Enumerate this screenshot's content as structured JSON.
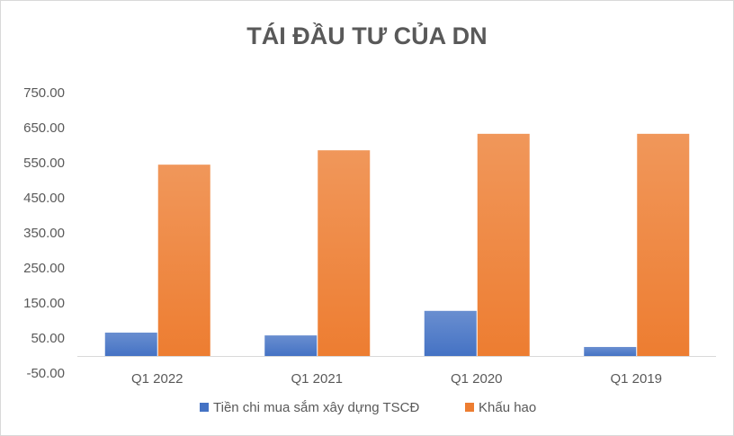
{
  "chart_data": {
    "type": "bar",
    "title": "TÁI ĐẦU TƯ CỦA DN",
    "categories": [
      "Q1 2022",
      "Q1 2021",
      "Q1 2020",
      "Q1 2019"
    ],
    "series": [
      {
        "name": "Tiền chi mua sắm xây dựng TSCĐ",
        "color": "#4472c4",
        "values": [
          68,
          60,
          130,
          27
        ]
      },
      {
        "name": "Khấu hao",
        "color": "#ed7d31",
        "values": [
          547,
          588,
          635,
          635
        ]
      }
    ],
    "ylim": [
      -50,
      750
    ],
    "yticks": [
      {
        "value": -50,
        "label": "-50.00"
      },
      {
        "value": 50,
        "label": "50.00"
      },
      {
        "value": 150,
        "label": "150.00"
      },
      {
        "value": 250,
        "label": "250.00"
      },
      {
        "value": 350,
        "label": "350.00"
      },
      {
        "value": 450,
        "label": "450.00"
      },
      {
        "value": 550,
        "label": "550.00"
      },
      {
        "value": 650,
        "label": "650.00"
      },
      {
        "value": 750,
        "label": "750.00"
      }
    ],
    "grid": false,
    "legend": "bottom"
  }
}
